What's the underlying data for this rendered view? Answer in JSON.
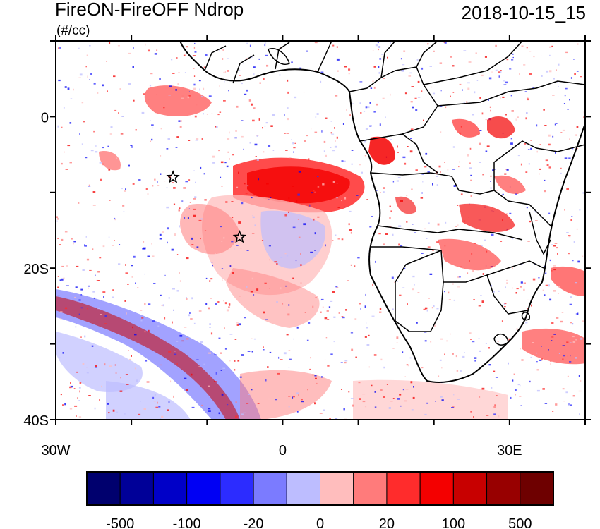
{
  "title": "FireON-FireOFF Ndrop",
  "units": "(#/cc)",
  "datetime": "2018-10-15_15",
  "map": {
    "lon_range": [
      -30,
      40
    ],
    "lat_range": [
      -40,
      10
    ],
    "y_ticks": [
      {
        "label": "0",
        "lat": 0
      },
      {
        "label": "20S",
        "lat": -20
      },
      {
        "label": "40S",
        "lat": -40
      }
    ],
    "x_ticks": [
      {
        "label": "30W",
        "lon": -30
      },
      {
        "label": "0",
        "lon": 0
      },
      {
        "label": "30E",
        "lon": 30
      }
    ],
    "markers": [
      {
        "name": "star",
        "lon": -14.5,
        "lat": -8
      },
      {
        "name": "star",
        "lon": -5.7,
        "lat": -15.9
      }
    ]
  },
  "colorbar": {
    "colors": [
      "#00006e",
      "#000098",
      "#0000c8",
      "#0000f4",
      "#2c2cff",
      "#7b7bff",
      "#bdbdff",
      "#ffbdbd",
      "#ff7b7b",
      "#ff2c2c",
      "#f40000",
      "#c80000",
      "#980000",
      "#6e0000"
    ],
    "labels": [
      "-500",
      "-100",
      "-20",
      "0",
      "20",
      "100",
      "500"
    ]
  }
}
